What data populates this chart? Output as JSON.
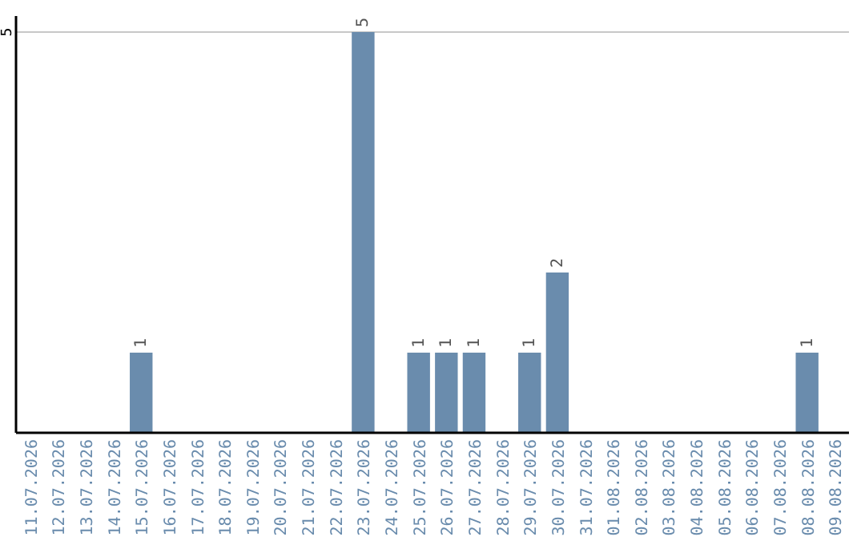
{
  "chart_data": {
    "type": "bar",
    "categories": [
      "11.07.2026",
      "12.07.2026",
      "13.07.2026",
      "14.07.2026",
      "15.07.2026",
      "16.07.2026",
      "17.07.2026",
      "18.07.2026",
      "19.07.2026",
      "20.07.2026",
      "21.07.2026",
      "22.07.2026",
      "23.07.2026",
      "24.07.2026",
      "25.07.2026",
      "26.07.2026",
      "27.07.2026",
      "28.07.2026",
      "29.07.2026",
      "30.07.2026",
      "31.07.2026",
      "01.08.2026",
      "02.08.2026",
      "03.08.2026",
      "04.08.2026",
      "05.08.2026",
      "06.08.2026",
      "07.08.2026",
      "08.08.2026",
      "09.08.2026"
    ],
    "values": [
      0,
      0,
      0,
      0,
      1,
      0,
      0,
      0,
      0,
      0,
      0,
      0,
      5,
      0,
      1,
      1,
      1,
      0,
      1,
      2,
      0,
      0,
      0,
      0,
      0,
      0,
      0,
      0,
      1,
      0
    ],
    "value_labels": [
      null,
      null,
      null,
      null,
      "1",
      null,
      null,
      null,
      null,
      null,
      null,
      null,
      "5",
      null,
      "1",
      "1",
      "1",
      null,
      "1",
      "2",
      null,
      null,
      null,
      null,
      null,
      null,
      null,
      null,
      "1",
      null
    ],
    "color": "#6a8cad",
    "ylim": [
      0,
      5.2
    ],
    "yticks": [
      5
    ],
    "grid": "y"
  }
}
